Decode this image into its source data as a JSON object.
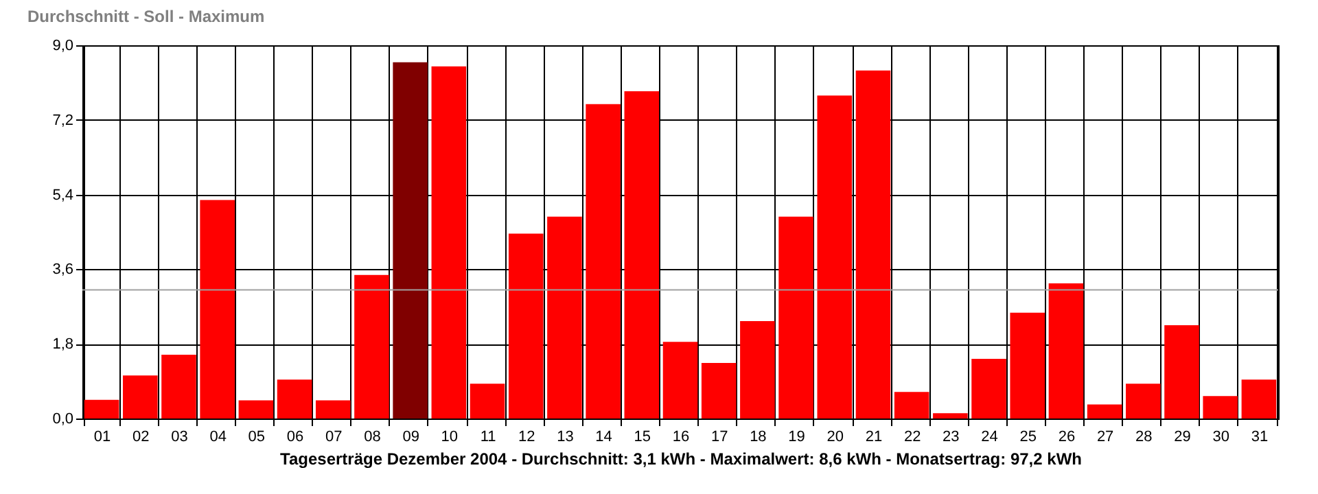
{
  "chart_data": {
    "type": "bar",
    "title": "Durchschnitt - Soll - Maximum",
    "xlabel": "Tageserträge Dezember 2004 - Durchschnitt: 3,1 kWh - Maximalwert: 8,6 kWh - Monatsertrag: 97,2 kWh",
    "categories": [
      "01",
      "02",
      "03",
      "04",
      "05",
      "06",
      "07",
      "08",
      "09",
      "10",
      "11",
      "12",
      "13",
      "14",
      "15",
      "16",
      "17",
      "18",
      "19",
      "20",
      "21",
      "22",
      "23",
      "24",
      "25",
      "26",
      "27",
      "28",
      "29",
      "30",
      "31"
    ],
    "values": [
      0.45,
      1.04,
      1.54,
      5.27,
      0.44,
      0.94,
      0.44,
      3.46,
      8.59,
      8.49,
      0.84,
      4.46,
      4.87,
      7.58,
      7.89,
      1.85,
      1.34,
      2.35,
      4.87,
      7.79,
      8.39,
      0.64,
      0.13,
      1.44,
      2.55,
      3.26,
      0.34,
      0.84,
      2.25,
      0.54,
      0.94
    ],
    "colors": [
      "#ff0000",
      "#ff0000",
      "#ff0000",
      "#ff0000",
      "#ff0000",
      "#ff0000",
      "#ff0000",
      "#ff0000",
      "#800000",
      "#ff0000",
      "#ff0000",
      "#ff0000",
      "#ff0000",
      "#ff0000",
      "#ff0000",
      "#ff0000",
      "#ff0000",
      "#ff0000",
      "#ff0000",
      "#ff0000",
      "#ff0000",
      "#ff0000",
      "#ff0000",
      "#ff0000",
      "#ff0000",
      "#ff0000",
      "#ff0000",
      "#ff0000",
      "#ff0000",
      "#ff0000",
      "#ff0000"
    ],
    "ylim": [
      0,
      9
    ],
    "yticks": [
      {
        "value": 0,
        "label": "0,0"
      },
      {
        "value": 1.8,
        "label": "1,8"
      },
      {
        "value": 3.6,
        "label": "3,6"
      },
      {
        "value": 5.4,
        "label": "5,4"
      },
      {
        "value": 7.2,
        "label": "7,2"
      },
      {
        "value": 9,
        "label": "9,0"
      }
    ],
    "ref_lines": [
      {
        "axis": "y",
        "value": 3.1,
        "color": "#a0a0a0"
      }
    ],
    "grid": true
  }
}
